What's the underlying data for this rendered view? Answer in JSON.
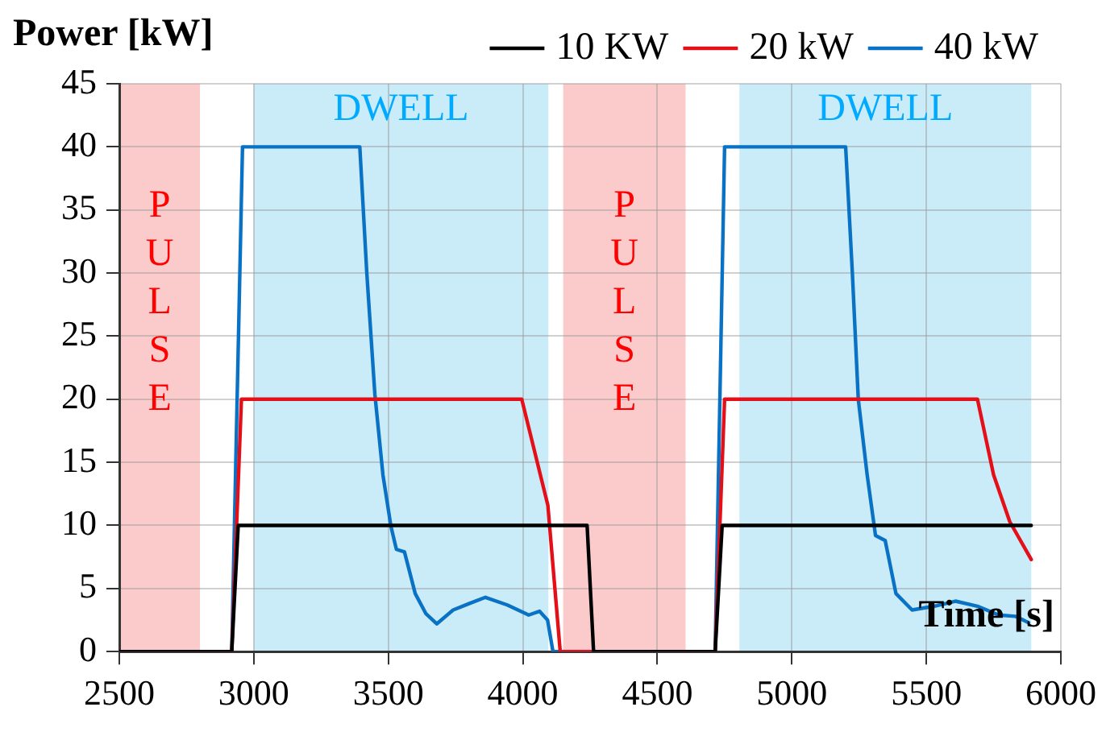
{
  "chart_data": {
    "type": "line",
    "xlabel": "Time [s]",
    "ylabel": "Power [kW]",
    "xlim": [
      2500,
      6000
    ],
    "xticks": [
      2500,
      3000,
      3500,
      4000,
      4500,
      5000,
      5500,
      6000
    ],
    "ylim": [
      0,
      45
    ],
    "yticks": [
      0,
      5,
      10,
      15,
      20,
      25,
      30,
      35,
      40,
      45
    ],
    "grid": true,
    "legend": "top right",
    "marker": "none",
    "line_style": "solid",
    "bands": [
      {
        "axis": "x",
        "from": 2500,
        "to": 2800,
        "label": "PULSE",
        "color": "#fbcaca"
      },
      {
        "axis": "x",
        "from": 3000,
        "to": 4095,
        "label": "DWELL",
        "color": "#c9ecf8"
      },
      {
        "axis": "x",
        "from": 4150,
        "to": 4605,
        "label": "PULSE",
        "color": "#fbcaca"
      },
      {
        "axis": "x",
        "from": 4805,
        "to": 5890,
        "label": "DWELL",
        "color": "#c9ecf8"
      }
    ],
    "series": [
      {
        "name": "10 KW",
        "color": "#000000",
        "x": [
          2500,
          2918,
          2942,
          4239,
          4263,
          4715,
          4741,
          5890
        ],
        "values": [
          0,
          0,
          10,
          10,
          0,
          0,
          10,
          10
        ]
      },
      {
        "name": "20 kW",
        "color": "#e3101a",
        "x": [
          2500,
          2918,
          2954,
          3996,
          4093,
          4139,
          4715,
          4750,
          5690,
          5750,
          5810,
          5890
        ],
        "values": [
          0,
          0,
          20,
          20,
          11.6,
          0,
          0,
          20,
          20,
          14,
          10.3,
          7.3
        ]
      },
      {
        "name": "40 kW",
        "color": "#0a72c4",
        "x": [
          2500,
          2918,
          2958,
          3394,
          3420,
          3450,
          3480,
          3510,
          3530,
          3560,
          3600,
          3640,
          3680,
          3741,
          3800,
          3861,
          3942,
          4022,
          4062,
          4092,
          4112,
          4715,
          4750,
          5200,
          5225,
          5247,
          5280,
          5311,
          5347,
          5387,
          5447,
          5530,
          5608,
          5690,
          5769,
          5830,
          5880
        ],
        "values": [
          0,
          0,
          40,
          40,
          30,
          20.4,
          14,
          9.9,
          8.1,
          7.9,
          4.6,
          3,
          2.2,
          3.3,
          3.8,
          4.3,
          3.7,
          2.9,
          3.2,
          2.5,
          0,
          0,
          40,
          40,
          30,
          20,
          14,
          9.2,
          8.8,
          4.6,
          3.3,
          3.6,
          4,
          3.6,
          2.9,
          2.8,
          2.3
        ]
      }
    ]
  }
}
